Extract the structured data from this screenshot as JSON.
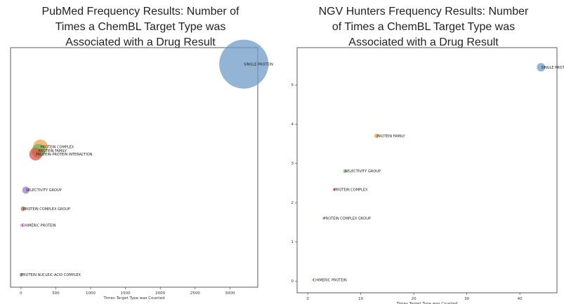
{
  "chart_data": [
    {
      "type": "scatter",
      "title": "PubMed Frequency Results: Number of\nTimes a ChemBL Target Type was\nAssociated with a Drug Result",
      "xlabel": "Times Target Type was Counted",
      "ylabel": "",
      "xlim": [
        -150,
        3400
      ],
      "ylim": [
        -0.3,
        5.5
      ],
      "x_ticks": [
        0,
        500,
        1000,
        1500,
        2000,
        2500,
        3000
      ],
      "y_ticks": [],
      "size_encodes": "x",
      "points": [
        {
          "label": "SINGLE PROTEIN",
          "x": 3200,
          "y": 5.1,
          "color": "#6f9bc7"
        },
        {
          "label": "PROTEIN COMPLEX",
          "x": 280,
          "y": 3.1,
          "color": "#f5a04b"
        },
        {
          "label": "PROTEIN FAMILY",
          "x": 250,
          "y": 3.0,
          "color": "#68b85a"
        },
        {
          "label": "PROTEIN-PROTEIN INTERACTION",
          "x": 210,
          "y": 2.92,
          "color": "#e0504a"
        },
        {
          "label": "SELECTIVITY GROUP",
          "x": 70,
          "y": 2.05,
          "color": "#a27ed0"
        },
        {
          "label": "PROTEIN COMPLEX GROUP",
          "x": 30,
          "y": 1.6,
          "color": "#a9785e"
        },
        {
          "label": "CHIMERIC PROTEIN",
          "x": 15,
          "y": 1.2,
          "color": "#e58ccc"
        },
        {
          "label": "PROTEIN NUCLEIC-ACID COMPLEX",
          "x": 3,
          "y": 0.0,
          "color": "#888888"
        }
      ]
    },
    {
      "type": "scatter",
      "title": "NGV Hunters Frequency Results: Number\nof Times a ChemBL Target Type was\nAssociated with a Drug Result",
      "xlabel": "Times Target Type was Counted",
      "ylabel": "",
      "xlim": [
        -2,
        47
      ],
      "ylim": [
        -0.3,
        5.95
      ],
      "x_ticks": [
        0,
        10,
        20,
        30,
        40
      ],
      "y_ticks": [
        0,
        1,
        2,
        3,
        4,
        5
      ],
      "size_encodes": "x",
      "points": [
        {
          "label": "SINGLE PROTEIN",
          "x": 44,
          "y": 5.45,
          "color": "#6f9bc7"
        },
        {
          "label": "PROTEIN FAMILY",
          "x": 13,
          "y": 3.7,
          "color": "#f5a04b"
        },
        {
          "label": "SELECTIVITY GROUP",
          "x": 7,
          "y": 2.8,
          "color": "#68b85a"
        },
        {
          "label": "PROTEIN COMPLEX",
          "x": 5,
          "y": 2.33,
          "color": "#e0504a"
        },
        {
          "label": "PROTEIN COMPLEX GROUP",
          "x": 3,
          "y": 1.6,
          "color": "#a27ed0"
        },
        {
          "label": "CHIMERIC PROTEIN",
          "x": 1,
          "y": 0.03,
          "color": "#a9785e"
        }
      ]
    }
  ]
}
